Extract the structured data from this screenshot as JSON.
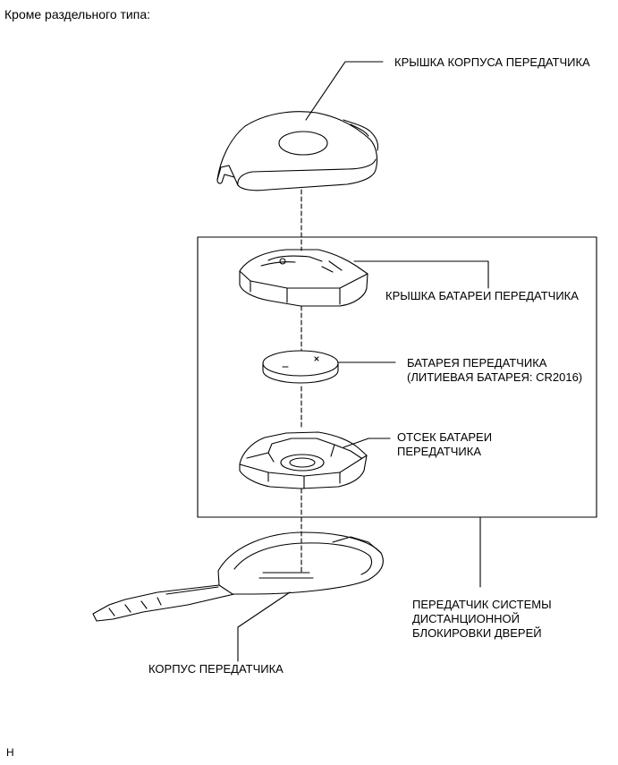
{
  "header": {
    "title": "Кроме раздельного типа:"
  },
  "labels": {
    "housing_cover": "КРЫШКА КОРПУСА ПЕРЕДАТЧИКА",
    "battery_cover": "КРЫШКА БАТАРЕИ ПЕРЕДАТЧИКА",
    "battery_line1": "БАТАРЕЯ ПЕРЕДАТЧИКА",
    "battery_line2": "(ЛИТИЕВАЯ БАТАРЕЯ: CR2016)",
    "battery_case_line1": "ОТСЕК БАТАРЕИ",
    "battery_case_line2": "ПЕРЕДАТЧИКА",
    "assembly_line1": "ПЕРЕДАТЧИК СИСТЕМЫ",
    "assembly_line2": "ДИСТАНЦИОННОЙ",
    "assembly_line3": "БЛОКИРОВКИ ДВЕРЕЙ",
    "housing": "КОРПУС ПЕРЕДАТЧИКА"
  },
  "footer": {
    "code": "H"
  }
}
